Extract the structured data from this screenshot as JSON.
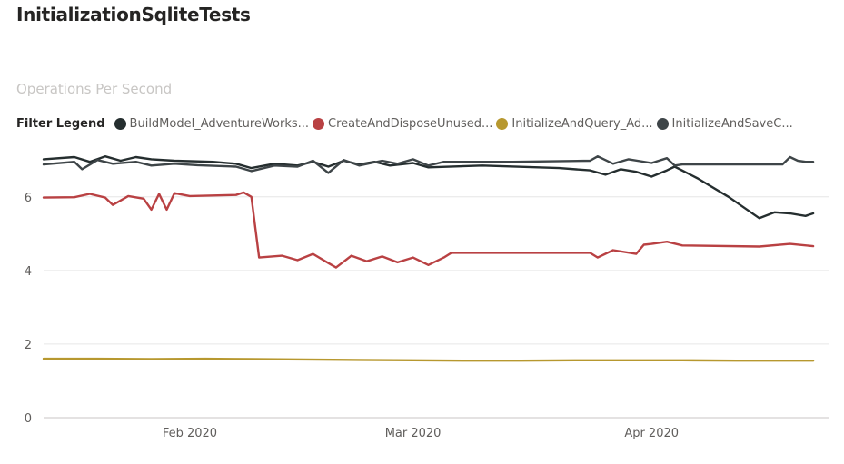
{
  "header": {
    "title": "InitializationSqliteTests"
  },
  "chart_data": {
    "type": "line",
    "title": "InitializationSqliteTests",
    "subtitle": "Operations Per Second",
    "legend_title": "Filter Legend",
    "legend_position": "top-left",
    "xlabel": "",
    "ylabel": "",
    "ylim": [
      0,
      7.4
    ],
    "yticks": [
      0,
      2,
      4,
      6
    ],
    "xlim": [
      "2020-01-13",
      "2020-04-24"
    ],
    "xticks": [
      {
        "date": "2020-02-01",
        "label": "Feb 2020"
      },
      {
        "date": "2020-03-01",
        "label": "Mar 2020"
      },
      {
        "date": "2020-04-01",
        "label": "Apr 2020"
      }
    ],
    "grid": true,
    "series": [
      {
        "name": "BuildModel_AdventureWorks...",
        "color": "#252e2f",
        "points": [
          [
            "2020-01-13",
            7.02
          ],
          [
            "2020-01-17",
            7.08
          ],
          [
            "2020-01-19",
            6.95
          ],
          [
            "2020-01-21",
            7.1
          ],
          [
            "2020-01-23",
            6.98
          ],
          [
            "2020-01-25",
            7.08
          ],
          [
            "2020-01-27",
            7.02
          ],
          [
            "2020-01-30",
            6.98
          ],
          [
            "2020-02-04",
            6.95
          ],
          [
            "2020-02-07",
            6.9
          ],
          [
            "2020-02-09",
            6.78
          ],
          [
            "2020-02-12",
            6.9
          ],
          [
            "2020-02-15",
            6.85
          ],
          [
            "2020-02-17",
            6.95
          ],
          [
            "2020-02-19",
            6.82
          ],
          [
            "2020-02-21",
            6.98
          ],
          [
            "2020-02-23",
            6.88
          ],
          [
            "2020-02-25",
            6.95
          ],
          [
            "2020-02-27",
            6.85
          ],
          [
            "2020-03-01",
            6.92
          ],
          [
            "2020-03-03",
            6.8
          ],
          [
            "2020-03-10",
            6.85
          ],
          [
            "2020-03-20",
            6.78
          ],
          [
            "2020-03-24",
            6.72
          ],
          [
            "2020-03-26",
            6.6
          ],
          [
            "2020-03-28",
            6.75
          ],
          [
            "2020-03-30",
            6.68
          ],
          [
            "2020-04-01",
            6.55
          ],
          [
            "2020-04-03",
            6.72
          ],
          [
            "2020-04-04",
            6.82
          ],
          [
            "2020-04-07",
            6.5
          ],
          [
            "2020-04-11",
            6.0
          ],
          [
            "2020-04-15",
            5.42
          ],
          [
            "2020-04-17",
            5.58
          ],
          [
            "2020-04-19",
            5.55
          ],
          [
            "2020-04-21",
            5.48
          ],
          [
            "2020-04-22",
            5.55
          ]
        ]
      },
      {
        "name": "CreateAndDisposeUnused...",
        "color": "#b94143",
        "points": [
          [
            "2020-01-13",
            5.98
          ],
          [
            "2020-01-17",
            5.99
          ],
          [
            "2020-01-19",
            6.08
          ],
          [
            "2020-01-21",
            5.98
          ],
          [
            "2020-01-22",
            5.78
          ],
          [
            "2020-01-24",
            6.02
          ],
          [
            "2020-01-26",
            5.95
          ],
          [
            "2020-01-27",
            5.65
          ],
          [
            "2020-01-28",
            6.08
          ],
          [
            "2020-01-29",
            5.65
          ],
          [
            "2020-01-30",
            6.1
          ],
          [
            "2020-02-01",
            6.02
          ],
          [
            "2020-02-07",
            6.05
          ],
          [
            "2020-02-08",
            6.12
          ],
          [
            "2020-02-09",
            6.0
          ],
          [
            "2020-02-10",
            4.35
          ],
          [
            "2020-02-13",
            4.4
          ],
          [
            "2020-02-15",
            4.28
          ],
          [
            "2020-02-17",
            4.45
          ],
          [
            "2020-02-19",
            4.2
          ],
          [
            "2020-02-20",
            4.08
          ],
          [
            "2020-02-22",
            4.4
          ],
          [
            "2020-02-24",
            4.25
          ],
          [
            "2020-02-26",
            4.38
          ],
          [
            "2020-02-28",
            4.22
          ],
          [
            "2020-03-01",
            4.35
          ],
          [
            "2020-03-03",
            4.15
          ],
          [
            "2020-03-05",
            4.35
          ],
          [
            "2020-03-06",
            4.48
          ],
          [
            "2020-03-15",
            4.48
          ],
          [
            "2020-03-24",
            4.48
          ],
          [
            "2020-03-25",
            4.35
          ],
          [
            "2020-03-27",
            4.55
          ],
          [
            "2020-03-30",
            4.45
          ],
          [
            "2020-03-31",
            4.7
          ],
          [
            "2020-04-01",
            4.72
          ],
          [
            "2020-04-03",
            4.78
          ],
          [
            "2020-04-05",
            4.68
          ],
          [
            "2020-04-15",
            4.65
          ],
          [
            "2020-04-19",
            4.72
          ],
          [
            "2020-04-22",
            4.66
          ]
        ]
      },
      {
        "name": "InitializeAndQuery_Ad...",
        "color": "#b7982f",
        "points": [
          [
            "2020-01-13",
            1.6
          ],
          [
            "2020-01-20",
            1.6
          ],
          [
            "2020-01-27",
            1.59
          ],
          [
            "2020-02-03",
            1.6
          ],
          [
            "2020-02-09",
            1.59
          ],
          [
            "2020-02-16",
            1.58
          ],
          [
            "2020-02-23",
            1.57
          ],
          [
            "2020-03-01",
            1.56
          ],
          [
            "2020-03-08",
            1.55
          ],
          [
            "2020-03-15",
            1.55
          ],
          [
            "2020-03-22",
            1.56
          ],
          [
            "2020-03-29",
            1.56
          ],
          [
            "2020-04-05",
            1.56
          ],
          [
            "2020-04-12",
            1.55
          ],
          [
            "2020-04-18",
            1.55
          ],
          [
            "2020-04-22",
            1.55
          ]
        ]
      },
      {
        "name": "InitializeAndSaveC...",
        "color": "#3e4548",
        "points": [
          [
            "2020-01-13",
            6.88
          ],
          [
            "2020-01-17",
            6.95
          ],
          [
            "2020-01-18",
            6.75
          ],
          [
            "2020-01-20",
            7.0
          ],
          [
            "2020-01-22",
            6.9
          ],
          [
            "2020-01-25",
            6.95
          ],
          [
            "2020-01-27",
            6.85
          ],
          [
            "2020-01-30",
            6.9
          ],
          [
            "2020-02-02",
            6.86
          ],
          [
            "2020-02-07",
            6.82
          ],
          [
            "2020-02-09",
            6.7
          ],
          [
            "2020-02-12",
            6.85
          ],
          [
            "2020-02-15",
            6.82
          ],
          [
            "2020-02-17",
            6.98
          ],
          [
            "2020-02-19",
            6.65
          ],
          [
            "2020-02-21",
            7.0
          ],
          [
            "2020-02-23",
            6.85
          ],
          [
            "2020-02-26",
            6.98
          ],
          [
            "2020-02-28",
            6.9
          ],
          [
            "2020-03-01",
            7.02
          ],
          [
            "2020-03-03",
            6.85
          ],
          [
            "2020-03-05",
            6.95
          ],
          [
            "2020-03-14",
            6.95
          ],
          [
            "2020-03-24",
            6.98
          ],
          [
            "2020-03-25",
            7.1
          ],
          [
            "2020-03-27",
            6.9
          ],
          [
            "2020-03-29",
            7.02
          ],
          [
            "2020-04-01",
            6.92
          ],
          [
            "2020-04-03",
            7.05
          ],
          [
            "2020-04-04",
            6.85
          ],
          [
            "2020-04-05",
            6.88
          ],
          [
            "2020-04-18",
            6.88
          ],
          [
            "2020-04-19",
            7.08
          ],
          [
            "2020-04-20",
            6.98
          ],
          [
            "2020-04-21",
            6.95
          ],
          [
            "2020-04-22",
            6.95
          ]
        ]
      }
    ]
  }
}
